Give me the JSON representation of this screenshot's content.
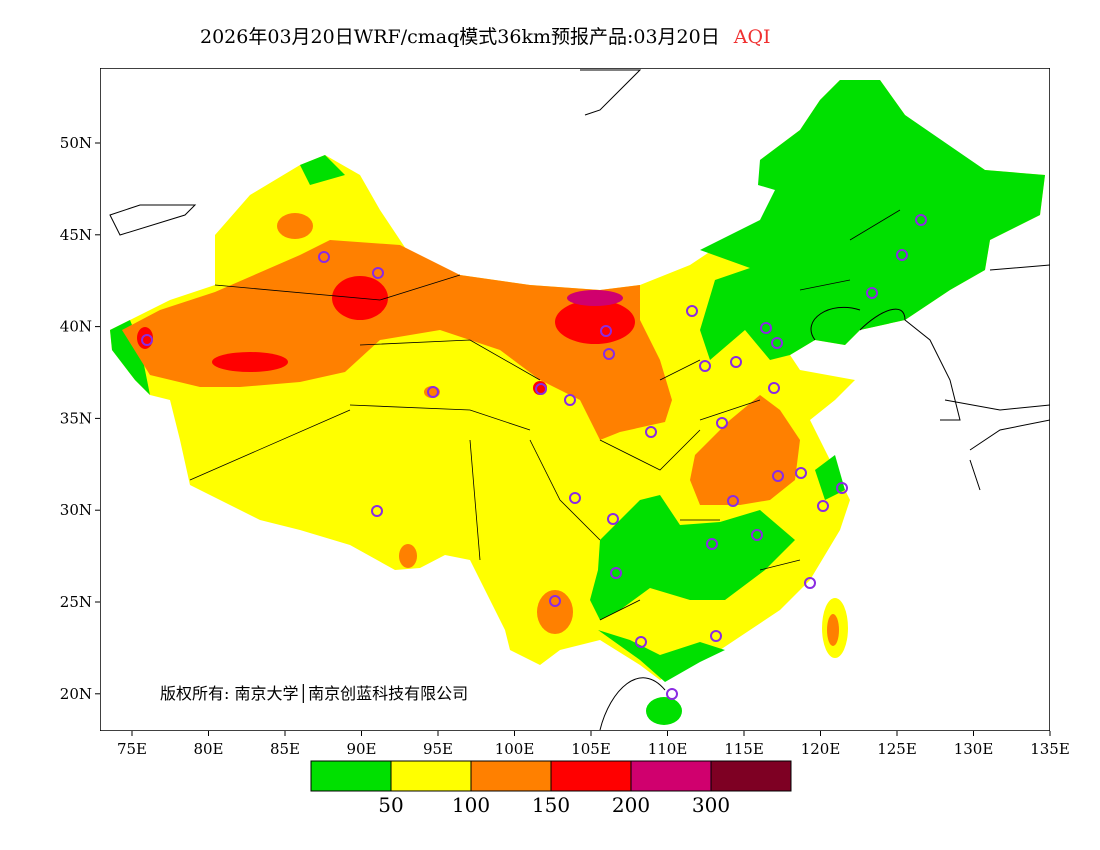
{
  "title": {
    "main": "2026年03月20日WRF/cmaq模式36km预报产品:03月20日",
    "variable": "AQI"
  },
  "axes": {
    "x_ticks": [
      "75E",
      "80E",
      "85E",
      "90E",
      "95E",
      "100E",
      "105E",
      "110E",
      "115E",
      "120E",
      "125E",
      "130E",
      "135E"
    ],
    "y_ticks": [
      "50N",
      "45N",
      "40N",
      "35N",
      "30N",
      "25N",
      "20N"
    ]
  },
  "copyright": "版权所有: 南京大学│南京创蓝科技有限公司",
  "legend": {
    "colors": [
      "#00e000",
      "#ffff00",
      "#ff8000",
      "#ff0000",
      "#d0006e",
      "#7e0023"
    ],
    "labels": [
      "50",
      "100",
      "150",
      "200",
      "300"
    ]
  }
}
